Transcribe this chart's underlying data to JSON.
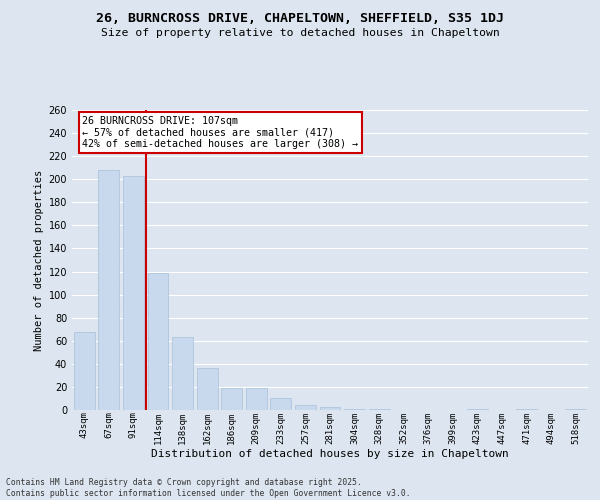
{
  "title1": "26, BURNCROSS DRIVE, CHAPELTOWN, SHEFFIELD, S35 1DJ",
  "title2": "Size of property relative to detached houses in Chapeltown",
  "xlabel": "Distribution of detached houses by size in Chapeltown",
  "ylabel": "Number of detached properties",
  "categories": [
    "43sqm",
    "67sqm",
    "91sqm",
    "114sqm",
    "138sqm",
    "162sqm",
    "186sqm",
    "209sqm",
    "233sqm",
    "257sqm",
    "281sqm",
    "304sqm",
    "328sqm",
    "352sqm",
    "376sqm",
    "399sqm",
    "423sqm",
    "447sqm",
    "471sqm",
    "494sqm",
    "518sqm"
  ],
  "values": [
    68,
    208,
    203,
    119,
    63,
    36,
    19,
    19,
    10,
    4,
    3,
    1,
    1,
    0,
    0,
    0,
    1,
    0,
    1,
    0,
    1
  ],
  "bar_color": "#c9d9ed",
  "bar_edge_color": "#a8c0da",
  "vline_color": "#cc0000",
  "annotation_text": "26 BURNCROSS DRIVE: 107sqm\n← 57% of detached houses are smaller (417)\n42% of semi-detached houses are larger (308) →",
  "annotation_box_color": "#ffffff",
  "annotation_box_edge": "#cc0000",
  "ylim": [
    0,
    260
  ],
  "yticks": [
    0,
    20,
    40,
    60,
    80,
    100,
    120,
    140,
    160,
    180,
    200,
    220,
    240,
    260
  ],
  "bg_color": "#dde6f0",
  "grid_color": "#ffffff",
  "footer_text": "Contains HM Land Registry data © Crown copyright and database right 2025.\nContains public sector information licensed under the Open Government Licence v3.0."
}
